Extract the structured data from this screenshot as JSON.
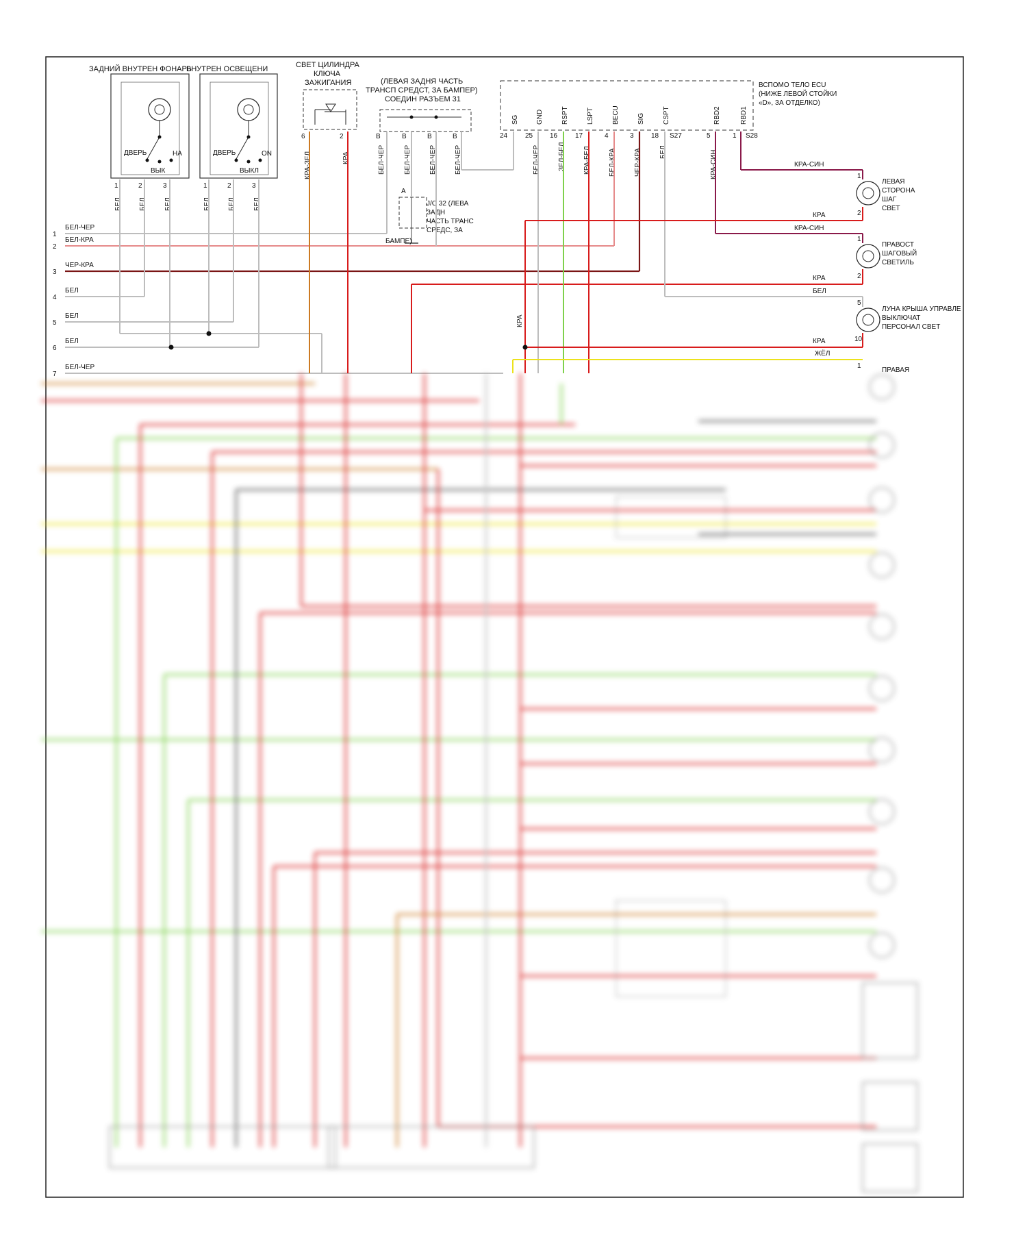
{
  "components": {
    "rear_dome_lamp": {
      "title": "ЗАДНИЙ ВНУТРЕН ФОНАРЬ",
      "switch_door": "ДВЕРЬ",
      "switch_on": "НА",
      "switch_off": "ВЫК",
      "pins": [
        "1",
        "2",
        "3"
      ],
      "wires": [
        "БЕЛ",
        "БЕЛ",
        "БЕЛ"
      ]
    },
    "interior_lamp": {
      "title": "ВНУТРЕН ОСВЕЩЕНИ",
      "switch_door": "ДВЕРЬ",
      "switch_on": "ON",
      "switch_off": "ВЫКЛ",
      "pins": [
        "1",
        "2",
        "3"
      ],
      "wires": [
        "БЕЛ",
        "БЕЛ",
        "БЕЛ"
      ]
    },
    "key_cylinder_light": {
      "title_lines": [
        "СВЕТ ЦИЛИНДРА",
        "КЛЮЧА",
        "ЗАЖИГАНИЯ"
      ],
      "pins": [
        "6",
        "2"
      ],
      "wires": [
        "КРА-ЗЕЛ",
        "КРА"
      ]
    },
    "connector_31": {
      "title_lines": [
        "(ЛЕВАЯ ЗАДНЯ ЧАСТЬ",
        "ТРАНСП СРЕДСТ, ЗА БАМПЕР)",
        "СОЕДИН РАЗЪЕМ 31"
      ],
      "pins": [
        "B",
        "B",
        "B",
        "B"
      ],
      "wires": [
        "БЕЛ-ЧЕР",
        "БЕЛ-ЧЕР",
        "БЕЛ-ЧЕР",
        "БЕЛ-ЧЕР"
      ]
    },
    "jc32": {
      "pin": "A",
      "label_lines": [
        "J/C 32 (ЛЕВА",
        "ЗАДН",
        "ЧАСТЬ ТРАНС",
        "СРЕДС, ЗА",
        "БАМПЕ)"
      ]
    },
    "body_ecu": {
      "title_lines": [
        "ВСПОМО ТЕЛО ECU",
        "(НИЖЕ ЛЕВОЙ СТОЙКИ",
        "«D», ЗА ОТДЕЛКО)"
      ],
      "terminals": [
        "SG",
        "GND",
        "RSPT",
        "LSPT",
        "BECU",
        "SIG",
        "CSPT",
        "RBD2",
        "RBD1"
      ],
      "pins": [
        "24",
        "25",
        "16",
        "17",
        "4",
        "3",
        "18",
        "S27",
        "5",
        "1",
        "S28"
      ],
      "wires": [
        "БЕЛ-ЧЕР",
        "ЗЕЛ-БЕЛ",
        "КРА-БЕЛ",
        "БЕЛ-КРА",
        "ЧЕР-КРА",
        "БЕЛ",
        "КРА-СИН"
      ]
    },
    "left_step_light": {
      "label_lines": [
        "ЛЕВАЯ",
        "СТОРОНА",
        "ШАГ",
        "СВЕТ"
      ],
      "pins": [
        "1",
        "2"
      ],
      "wires": [
        "КРА-СИН",
        "КРА"
      ]
    },
    "right_step_light": {
      "label_lines": [
        "ПРАВОСТ",
        "ШАГОВЫЙ",
        "СВЕТИЛЬ"
      ],
      "pins": [
        "1",
        "2"
      ],
      "wires": [
        "КРА-СИН",
        "КРА"
      ]
    },
    "moonroof_lamp": {
      "label_lines": [
        "ЛУНА КРЫША УПРАВЛЕ",
        "ВЫКЛЮЧАТ",
        "ПЕРСОНАЛ СВЕТ"
      ],
      "pins": [
        "5",
        "10"
      ],
      "wires": [
        "БЕЛ",
        "КРА"
      ]
    },
    "right_partial": {
      "label_lines": [
        "ПРАВАЯ"
      ],
      "pin": "1",
      "wire": "ЖЁЛ"
    }
  },
  "left_rails": {
    "numbers": [
      "1",
      "2",
      "3",
      "4",
      "5",
      "6",
      "7"
    ],
    "wires": [
      "БЕЛ-ЧЕР",
      "БЕЛ-КРА",
      "ЧЕР-КРА",
      "БЕЛ",
      "БЕЛ",
      "БЕЛ",
      "БЕЛ-ЧЕР"
    ]
  },
  "misc_wires": {
    "kra_vertical": "КРА"
  },
  "colors": {
    "white_wire": "#bdbdbd",
    "red": "#d81c1c",
    "dark_red": "#7a1515",
    "pink": "#e68a8a",
    "green": "#7fd14c",
    "orange": "#cc7a22",
    "yellow": "#ece21c",
    "purple": "#8a1a4a",
    "black": "#222222"
  }
}
